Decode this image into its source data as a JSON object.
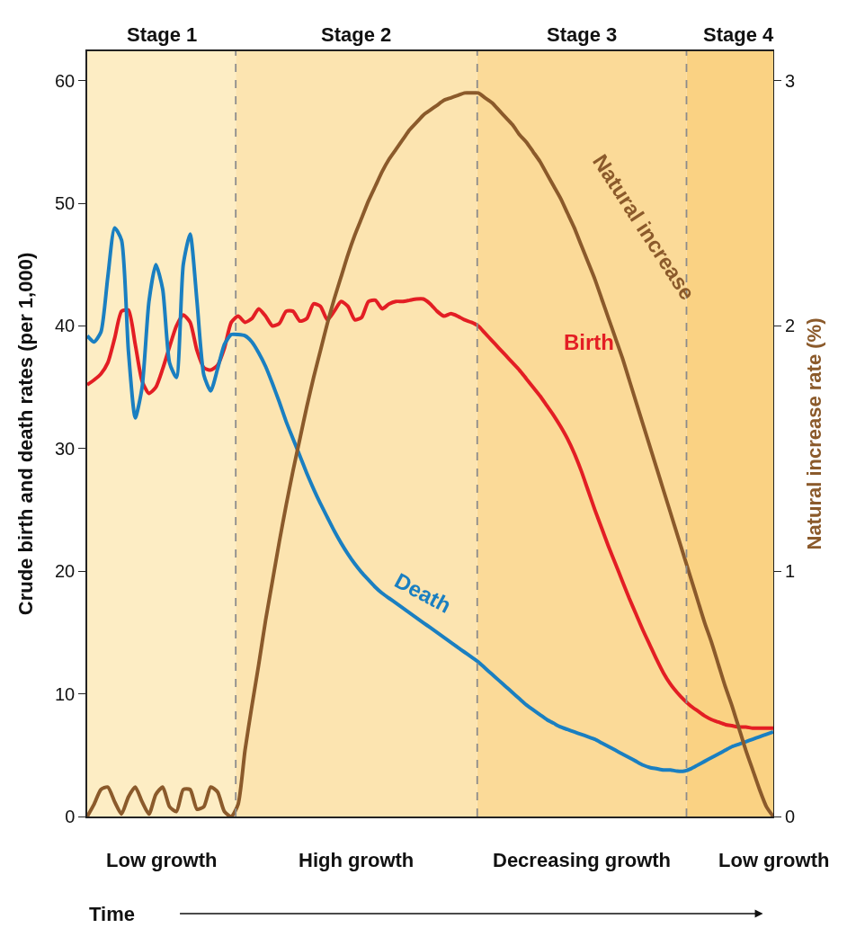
{
  "chart_data": {
    "type": "line",
    "categories": [
      null,
      null,
      null,
      null,
      null,
      null,
      null,
      null,
      null,
      null,
      null,
      null,
      null,
      null,
      null,
      null,
      null,
      null,
      null,
      null,
      null,
      null,
      null,
      null,
      null,
      null,
      null,
      null,
      null,
      null,
      null,
      null,
      null,
      null,
      null,
      null,
      null,
      null,
      null,
      null,
      null,
      null,
      null,
      null,
      null,
      null,
      null,
      null,
      null,
      null,
      null,
      null,
      null,
      null,
      null,
      null,
      null,
      null,
      null,
      null,
      null,
      null,
      null,
      null,
      null,
      null,
      null,
      null,
      null,
      null,
      null,
      null,
      null,
      null,
      null,
      null,
      null,
      null,
      null,
      null,
      null,
      null,
      null,
      null,
      null,
      null,
      null,
      null,
      null,
      null,
      null,
      null,
      null,
      null,
      null,
      null,
      null,
      null,
      null,
      null,
      null
    ],
    "ylabel": "Crude birth and death rates (per 1,000)",
    "y2label": "Natural increase rate (%)",
    "xlabel": "Time",
    "ylim": [
      0,
      62.4
    ],
    "yticks": [
      0,
      10,
      20,
      30,
      40,
      50,
      60
    ],
    "y2lim": [
      0,
      3.12
    ],
    "y2ticks": [
      0,
      1,
      2,
      3
    ],
    "tick_labels": "y",
    "grid": false,
    "legend": false,
    "marker": "none",
    "line_style": "solid",
    "series": [
      {
        "name": "Birth",
        "color": "#e31e24",
        "values": [
          35.2,
          35.6,
          36.1,
          37,
          39,
          41.2,
          41.3,
          38.5,
          35.5,
          34.5,
          35,
          36.5,
          38.3,
          40,
          40.9,
          40.3,
          38,
          36.6,
          36.4,
          36.8,
          38.2,
          40.3,
          40.8,
          40.3,
          40.6,
          41.4,
          40.8,
          40.0,
          40.2,
          41.2,
          41.2,
          40.4,
          40.6,
          41.8,
          41.6,
          40.5,
          41.2,
          42.0,
          41.6,
          40.5,
          40.7,
          42,
          42.1,
          41.4,
          41.8,
          42,
          42,
          42.1,
          42.2,
          42.2,
          41.8,
          41.2,
          40.8,
          41,
          40.8,
          40.5,
          40.3,
          40,
          39.4,
          38.8,
          38.2,
          37.6,
          37.0,
          36.4,
          35.7,
          35.0,
          34.3,
          33.5,
          32.7,
          31.8,
          30.8,
          29.6,
          28.2,
          26.6,
          25.0,
          23.5,
          22.0,
          20.6,
          19.2,
          17.8,
          16.5,
          15.2,
          14.0,
          12.8,
          11.7,
          10.8,
          10.1,
          9.5,
          9.0,
          8.6,
          8.2,
          7.9,
          7.7,
          7.5,
          7.4,
          7.3,
          7.3,
          7.2,
          7.2,
          7.2,
          7.2
        ]
      },
      {
        "name": "Death",
        "color": "#1a7fc1",
        "values": [
          39.2,
          38.7,
          39.5,
          44,
          48,
          47,
          38,
          32.5,
          35,
          42,
          45,
          43,
          37,
          35.8,
          45,
          47.5,
          42,
          36,
          34.7,
          36.5,
          38.5,
          39.3,
          39.3,
          39.2,
          38.7,
          37.8,
          36.7,
          35.3,
          33.8,
          32.2,
          30.8,
          29.4,
          28,
          26.7,
          25.5,
          24.4,
          23.3,
          22.3,
          21.4,
          20.6,
          19.9,
          19.3,
          18.7,
          18.2,
          17.8,
          17.4,
          17,
          16.6,
          16.2,
          15.8,
          15.4,
          15,
          14.6,
          14.2,
          13.8,
          13.4,
          13.0,
          12.6,
          12.1,
          11.6,
          11.1,
          10.6,
          10.1,
          9.6,
          9.1,
          8.7,
          8.3,
          7.9,
          7.6,
          7.3,
          7.1,
          6.9,
          6.7,
          6.5,
          6.3,
          6.0,
          5.7,
          5.4,
          5.1,
          4.8,
          4.5,
          4.2,
          4.0,
          3.9,
          3.8,
          3.8,
          3.7,
          3.7,
          3.9,
          4.2,
          4.5,
          4.8,
          5.1,
          5.4,
          5.7,
          5.9,
          6.1,
          6.3,
          6.5,
          6.7,
          6.9
        ]
      },
      {
        "name": "Natural increase",
        "color": "#8b5a2b",
        "axis": "y2",
        "values": [
          0,
          0.05,
          0.11,
          0.12,
          0.06,
          0.01,
          0.08,
          0.12,
          0.06,
          0.01,
          0.09,
          0.12,
          0.04,
          0.02,
          0.11,
          0.11,
          0.03,
          0.04,
          0.12,
          0.1,
          0.02,
          0.0,
          0.05,
          0.27,
          0.45,
          0.62,
          0.8,
          0.96,
          1.12,
          1.27,
          1.41,
          1.54,
          1.67,
          1.79,
          1.9,
          2.01,
          2.11,
          2.2,
          2.29,
          2.37,
          2.44,
          2.51,
          2.57,
          2.63,
          2.68,
          2.72,
          2.76,
          2.8,
          2.83,
          2.86,
          2.88,
          2.9,
          2.92,
          2.93,
          2.94,
          2.95,
          2.95,
          2.95,
          2.93,
          2.91,
          2.88,
          2.85,
          2.82,
          2.78,
          2.75,
          2.71,
          2.67,
          2.62,
          2.57,
          2.52,
          2.46,
          2.4,
          2.33,
          2.26,
          2.19,
          2.11,
          2.03,
          1.95,
          1.87,
          1.78,
          1.69,
          1.6,
          1.51,
          1.42,
          1.33,
          1.24,
          1.15,
          1.06,
          0.97,
          0.88,
          0.79,
          0.71,
          0.62,
          0.53,
          0.45,
          0.36,
          0.27,
          0.19,
          0.11,
          0.04,
          0
        ]
      }
    ],
    "annotations": [
      "Stage 1",
      "Stage 2",
      "Stage 3",
      "Stage 4",
      "Low growth",
      "High growth",
      "Decreasing growth",
      "Low growth"
    ]
  }
}
